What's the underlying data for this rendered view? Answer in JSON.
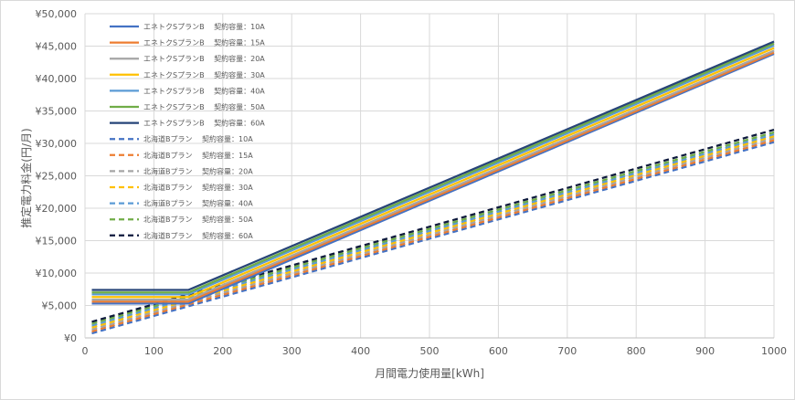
{
  "chart_data": {
    "type": "line",
    "title": "",
    "xlabel": "月間電力使用量[kWh]",
    "ylabel": "推定電力料金(円/月)",
    "xlim": [
      0,
      1000
    ],
    "ylim": [
      0,
      50000
    ],
    "xticks": [
      0,
      100,
      200,
      300,
      400,
      500,
      600,
      700,
      800,
      900,
      1000
    ],
    "yticks": [
      0,
      5000,
      10000,
      15000,
      20000,
      25000,
      30000,
      35000,
      40000,
      45000,
      50000
    ],
    "xtick_labels": [
      "0",
      "100",
      "200",
      "300",
      "400",
      "500",
      "600",
      "700",
      "800",
      "900",
      "1000"
    ],
    "ytick_labels": [
      "¥0",
      "¥5,000",
      "¥10,000",
      "¥15,000",
      "¥20,000",
      "¥25,000",
      "¥30,000",
      "¥35,000",
      "¥40,000",
      "¥45,000",
      "¥50,000"
    ],
    "grid": true,
    "legend_position": "top-left",
    "series": [
      {
        "name": "エネトクSプランB　 契約容量：10A",
        "color": "#4472c4",
        "style": "solid",
        "x": [
          10,
          150,
          1000
        ],
        "y": [
          5300,
          5300,
          43800
        ]
      },
      {
        "name": "エネトクSプランB　 契約容量：15A",
        "color": "#ed7d31",
        "style": "solid",
        "x": [
          10,
          150,
          1000
        ],
        "y": [
          5600,
          5600,
          44000
        ]
      },
      {
        "name": "エネトクSプランB　 契約容量：20A",
        "color": "#a5a5a5",
        "style": "solid",
        "x": [
          10,
          150,
          1000
        ],
        "y": [
          5900,
          5900,
          44300
        ]
      },
      {
        "name": "エネトクSプランB　 契約容量：30A",
        "color": "#ffc000",
        "style": "solid",
        "x": [
          10,
          150,
          1000
        ],
        "y": [
          6300,
          6300,
          44700
        ]
      },
      {
        "name": "エネトクSプランB　 契約容量：40A",
        "color": "#5b9bd5",
        "style": "solid",
        "x": [
          10,
          150,
          1000
        ],
        "y": [
          6700,
          6700,
          45100
        ]
      },
      {
        "name": "エネトクSプランB　 契約容量：50A",
        "color": "#70ad47",
        "style": "solid",
        "x": [
          10,
          150,
          1000
        ],
        "y": [
          7000,
          7000,
          45400
        ]
      },
      {
        "name": "エネトクSプランB　 契約容量：60A",
        "color": "#264478",
        "style": "solid",
        "x": [
          10,
          150,
          1000
        ],
        "y": [
          7400,
          7400,
          45700
        ]
      },
      {
        "name": "北海道Bプラン　 契約容量：10A",
        "color": "#4472c4",
        "style": "dashed",
        "x": [
          10,
          1000
        ],
        "y": [
          700,
          30200
        ]
      },
      {
        "name": "北海道Bプラン　 契約容量：15A",
        "color": "#ed7d31",
        "style": "dashed",
        "x": [
          10,
          1000
        ],
        "y": [
          1000,
          30500
        ]
      },
      {
        "name": "北海道Bプラン　 契約容量：20A",
        "color": "#a5a5a5",
        "style": "dashed",
        "x": [
          10,
          1000
        ],
        "y": [
          1300,
          30800
        ]
      },
      {
        "name": "北海道Bプラン　 契約容量：30A",
        "color": "#ffc000",
        "style": "dashed",
        "x": [
          10,
          1000
        ],
        "y": [
          1600,
          31100
        ]
      },
      {
        "name": "北海道Bプラン　 契約容量：40A",
        "color": "#5b9bd5",
        "style": "dashed",
        "x": [
          10,
          1000
        ],
        "y": [
          1900,
          31400
        ]
      },
      {
        "name": "北海道Bプラン　 契約容量：50A",
        "color": "#70ad47",
        "style": "dashed",
        "x": [
          10,
          1000
        ],
        "y": [
          2200,
          31700
        ]
      },
      {
        "name": "北海道Bプラン　 契約容量：60A",
        "color": "#0e1a3d",
        "style": "dashed",
        "x": [
          10,
          1000
        ],
        "y": [
          2500,
          32100
        ]
      }
    ]
  }
}
